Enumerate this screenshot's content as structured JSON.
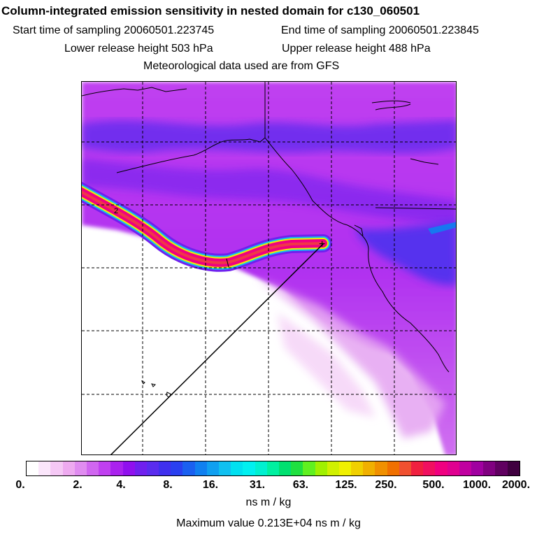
{
  "header": {
    "title": "Column-integrated emission sensitivity in nested domain for c130_060501",
    "start_label": "Start time of sampling 20060501.223745",
    "end_label": "End time of sampling 20060501.223845",
    "lower_label": "Lower release height  503 hPa",
    "upper_label": "Upper release height  488 hPa",
    "met_label": "Meteorological data used are from GFS"
  },
  "legend": {
    "ticks": [
      "0.",
      "2.",
      "4.",
      "8.",
      "16.",
      "31.",
      "63.",
      "125.",
      "250.",
      "500.",
      "1000.",
      "2000."
    ],
    "colors": [
      "#ffffff",
      "#fbe6fb",
      "#f5c8f5",
      "#eeaaf0",
      "#e08cf0",
      "#d066f0",
      "#c040f0",
      "#aa22ee",
      "#9010ee",
      "#7020ee",
      "#5a2cee",
      "#4030ee",
      "#2a40f0",
      "#1a60f0",
      "#1080f0",
      "#10a0f0",
      "#10c0f0",
      "#00e0f0",
      "#00f0f0",
      "#00f0d0",
      "#00f0a0",
      "#00e070",
      "#20e040",
      "#60f020",
      "#a0f000",
      "#d0f000",
      "#f0f000",
      "#f0d000",
      "#f0b000",
      "#f09000",
      "#f07000",
      "#f05030",
      "#f02040",
      "#f01060",
      "#f00080",
      "#e00090",
      "#c000a0",
      "#a000a0",
      "#800080",
      "#600060",
      "#400040"
    ],
    "units": "ns m / kg",
    "max_value": "Maximum value  0.213E+04 ns m / kg"
  },
  "map": {
    "plume_marker": "2",
    "release_marker": "+"
  }
}
